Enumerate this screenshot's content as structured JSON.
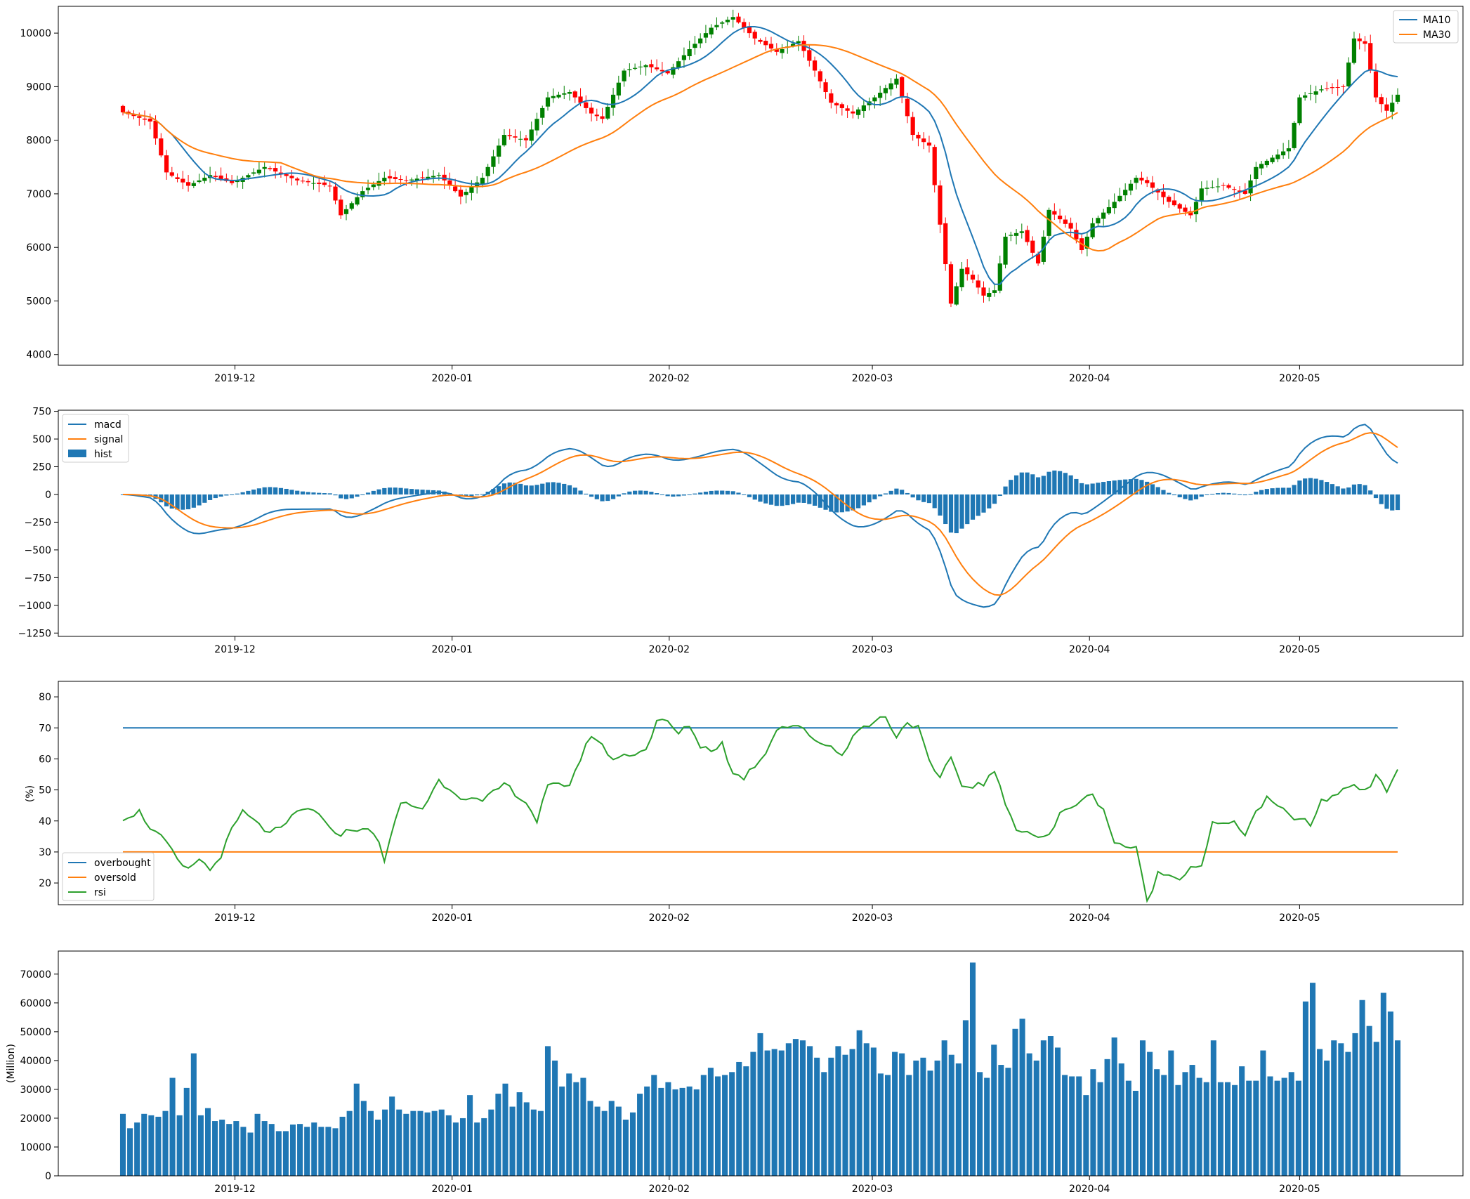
{
  "dates": {
    "start": "2019-11-15",
    "end": "2020-05-15"
  },
  "chart_data": [
    {
      "type": "candlestick",
      "ylim": [
        3800,
        10500
      ],
      "yticks": [
        4000,
        5000,
        6000,
        7000,
        8000,
        9000,
        10000
      ],
      "xticks": [
        "2019-12",
        "2020-01",
        "2020-02",
        "2020-03",
        "2020-04",
        "2020-05"
      ],
      "legend_position": "top-right",
      "colors": {
        "up": "#008000",
        "down": "#ff0000",
        "ma10": "#1f77b4",
        "ma30": "#ff7f0e"
      },
      "close_anchors": [
        [
          0,
          8520
        ],
        [
          5,
          8350
        ],
        [
          8,
          7400
        ],
        [
          12,
          7150
        ],
        [
          16,
          7350
        ],
        [
          20,
          7200
        ],
        [
          26,
          7500
        ],
        [
          32,
          7250
        ],
        [
          38,
          7150
        ],
        [
          40,
          6600
        ],
        [
          44,
          7050
        ],
        [
          48,
          7300
        ],
        [
          52,
          7250
        ],
        [
          58,
          7350
        ],
        [
          62,
          6950
        ],
        [
          66,
          7300
        ],
        [
          70,
          8100
        ],
        [
          74,
          8000
        ],
        [
          78,
          8800
        ],
        [
          82,
          8900
        ],
        [
          86,
          8500
        ],
        [
          88,
          8400
        ],
        [
          92,
          9300
        ],
        [
          96,
          9400
        ],
        [
          100,
          9250
        ],
        [
          104,
          9700
        ],
        [
          108,
          10100
        ],
        [
          112,
          10300
        ],
        [
          116,
          9900
        ],
        [
          120,
          9650
        ],
        [
          124,
          9850
        ],
        [
          127,
          9300
        ],
        [
          130,
          8700
        ],
        [
          134,
          8500
        ],
        [
          138,
          8800
        ],
        [
          142,
          9150
        ],
        [
          145,
          8100
        ],
        [
          148,
          7900
        ],
        [
          152,
          4950
        ],
        [
          154,
          5600
        ],
        [
          156,
          5400
        ],
        [
          158,
          5100
        ],
        [
          160,
          5200
        ],
        [
          162,
          6200
        ],
        [
          165,
          6300
        ],
        [
          168,
          5700
        ],
        [
          170,
          6700
        ],
        [
          174,
          6350
        ],
        [
          176,
          5950
        ],
        [
          178,
          6450
        ],
        [
          182,
          6850
        ],
        [
          186,
          7300
        ],
        [
          188,
          7200
        ],
        [
          192,
          6850
        ],
        [
          196,
          6600
        ],
        [
          198,
          7100
        ],
        [
          202,
          7150
        ],
        [
          206,
          7000
        ],
        [
          208,
          7500
        ],
        [
          214,
          7850
        ],
        [
          216,
          8800
        ],
        [
          220,
          8950
        ],
        [
          224,
          9000
        ],
        [
          226,
          9900
        ],
        [
          228,
          9800
        ],
        [
          230,
          8800
        ],
        [
          232,
          8550
        ],
        [
          234,
          8850
        ]
      ],
      "legend": [
        "MA10",
        "MA30"
      ]
    },
    {
      "type": "bar+line",
      "ylim": [
        -1280,
        760
      ],
      "yticks": [
        -1250,
        -1000,
        -750,
        -500,
        -250,
        0,
        250,
        500,
        750
      ],
      "xticks": [
        "2019-12",
        "2020-01",
        "2020-02",
        "2020-03",
        "2020-04",
        "2020-05"
      ],
      "legend_position": "top-left",
      "colors": {
        "macd": "#1f77b4",
        "signal": "#ff7f0e",
        "hist": "#1f77b4"
      },
      "legend": [
        "macd",
        "signal",
        "hist"
      ]
    },
    {
      "type": "line",
      "ylim": [
        13,
        85
      ],
      "yticks": [
        20,
        30,
        40,
        50,
        60,
        70,
        80
      ],
      "xticks": [
        "2019-12",
        "2020-01",
        "2020-02",
        "2020-03",
        "2020-04",
        "2020-05"
      ],
      "ylabel": "(%)",
      "overbought": 70,
      "oversold": 30,
      "legend_position": "bottom-left",
      "colors": {
        "overbought": "#1f77b4",
        "oversold": "#ff7f0e",
        "rsi": "#2ca02c"
      },
      "rsi_anchors": [
        [
          0,
          41
        ],
        [
          3,
          43
        ],
        [
          5,
          38
        ],
        [
          8,
          33
        ],
        [
          10,
          27
        ],
        [
          12,
          24
        ],
        [
          14,
          28
        ],
        [
          16,
          24
        ],
        [
          18,
          29
        ],
        [
          20,
          37
        ],
        [
          22,
          43
        ],
        [
          26,
          37
        ],
        [
          29,
          37
        ],
        [
          32,
          43
        ],
        [
          35,
          44
        ],
        [
          38,
          37
        ],
        [
          40,
          36
        ],
        [
          44,
          38
        ],
        [
          47,
          34
        ],
        [
          48,
          27
        ],
        [
          51,
          46
        ],
        [
          55,
          44
        ],
        [
          58,
          53
        ],
        [
          62,
          48
        ],
        [
          66,
          46
        ],
        [
          70,
          52
        ],
        [
          74,
          46
        ],
        [
          76,
          40
        ],
        [
          78,
          51
        ],
        [
          82,
          52
        ],
        [
          84,
          60
        ],
        [
          86,
          68
        ],
        [
          90,
          60
        ],
        [
          94,
          62
        ],
        [
          96,
          63
        ],
        [
          98,
          72
        ],
        [
          100,
          72
        ],
        [
          102,
          68
        ],
        [
          104,
          71
        ],
        [
          106,
          64
        ],
        [
          108,
          63
        ],
        [
          110,
          65
        ],
        [
          112,
          55
        ],
        [
          114,
          54
        ],
        [
          118,
          62
        ],
        [
          120,
          70
        ],
        [
          124,
          71
        ],
        [
          126,
          67
        ],
        [
          130,
          64
        ],
        [
          132,
          61
        ],
        [
          134,
          68
        ],
        [
          138,
          72
        ],
        [
          140,
          74
        ],
        [
          142,
          67
        ],
        [
          144,
          72
        ],
        [
          146,
          70
        ],
        [
          148,
          59
        ],
        [
          150,
          53
        ],
        [
          152,
          61
        ],
        [
          154,
          51
        ],
        [
          158,
          52
        ],
        [
          160,
          56
        ],
        [
          162,
          45
        ],
        [
          164,
          38
        ],
        [
          168,
          35
        ],
        [
          170,
          35
        ],
        [
          172,
          42
        ],
        [
          176,
          47
        ],
        [
          178,
          48
        ],
        [
          180,
          44
        ],
        [
          182,
          33
        ],
        [
          186,
          31
        ],
        [
          188,
          14
        ],
        [
          190,
          23
        ],
        [
          194,
          22
        ],
        [
          196,
          25
        ],
        [
          198,
          26
        ],
        [
          200,
          39
        ],
        [
          204,
          39
        ],
        [
          206,
          36
        ],
        [
          208,
          43
        ],
        [
          210,
          47
        ],
        [
          214,
          42
        ],
        [
          218,
          39
        ],
        [
          220,
          46
        ],
        [
          224,
          50
        ],
        [
          226,
          52
        ],
        [
          228,
          50
        ],
        [
          230,
          54
        ],
        [
          232,
          50
        ],
        [
          234,
          57
        ]
      ],
      "legend": [
        "overbought",
        "oversold",
        "rsi"
      ]
    },
    {
      "type": "bar",
      "ylim": [
        0,
        78000
      ],
      "yticks": [
        0,
        10000,
        20000,
        30000,
        40000,
        50000,
        60000,
        70000
      ],
      "xticks": [
        "2019-12",
        "2020-01",
        "2020-02",
        "2020-03",
        "2020-04",
        "2020-05"
      ],
      "ylabel": "(Million)",
      "color": "#1f77b4",
      "values": [
        21500,
        16500,
        18500,
        21500,
        21000,
        20500,
        22500,
        34000,
        21000,
        30500,
        42500,
        21000,
        23500,
        19000,
        19500,
        18000,
        19000,
        17000,
        15000,
        21500,
        19000,
        18000,
        15500,
        15500,
        17800,
        18000,
        17000,
        18500,
        17000,
        17000,
        16500,
        20500,
        22500,
        32000,
        26000,
        22500,
        19500,
        23000,
        27500,
        23000,
        21500,
        22500,
        22500,
        22000,
        22500,
        23000,
        21000,
        18500,
        20000,
        28000,
        18500,
        20000,
        23000,
        28500,
        32000,
        24000,
        29000,
        25500,
        23000,
        22500,
        45000,
        40000,
        31000,
        35500,
        32500,
        34000,
        26000,
        24000,
        22500,
        26000,
        24000,
        19500,
        22000,
        28500,
        31000,
        35000,
        30500,
        32500,
        30000,
        30500,
        31000,
        30000,
        35000,
        37500,
        34500,
        35000,
        36000,
        39500,
        38000,
        43000,
        49500,
        43500,
        44000,
        43500,
        46000,
        47500,
        47000,
        45000,
        41000,
        36000,
        41000,
        45000,
        42000,
        44000,
        50500,
        46000,
        44500,
        35500,
        35000,
        43000,
        42500,
        35000,
        40000,
        41000,
        36500,
        40000,
        47000,
        42000,
        39000,
        54000,
        74000,
        36000,
        34000,
        45500,
        38500,
        37500,
        51000,
        54500,
        42500,
        40000,
        47000,
        48500,
        44500,
        35000,
        34500,
        34500,
        28000,
        37000,
        32500,
        40500,
        48000,
        39000,
        33000,
        29500,
        47000,
        43000,
        37000,
        35000,
        43500,
        31500,
        36000,
        38500,
        34000,
        32500,
        47000,
        32500,
        32500,
        31500,
        38000,
        33000,
        33000,
        43500,
        34500,
        33000,
        34000,
        36000,
        33000,
        60500,
        67000,
        44000,
        40000,
        47000,
        46000,
        43000,
        49500,
        61000,
        52000,
        46500,
        63500,
        57000,
        47000
      ]
    }
  ]
}
